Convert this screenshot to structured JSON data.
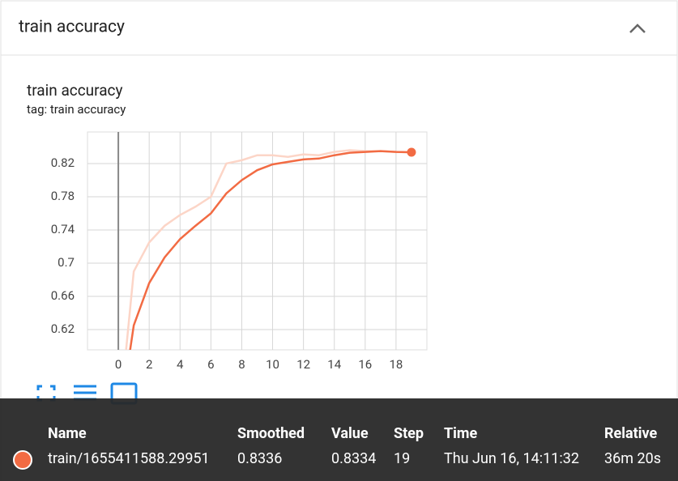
{
  "card": {
    "title": "train accuracy"
  },
  "chart_data": {
    "type": "line",
    "title": "train accuracy",
    "subtitle": "tag: train accuracy",
    "x": [
      0,
      1,
      2,
      3,
      4,
      5,
      6,
      7,
      8,
      9,
      10,
      11,
      12,
      13,
      14,
      15,
      16,
      17,
      18,
      19
    ],
    "series": [
      {
        "color": "#fcd5c7",
        "values": [
          0.5,
          0.69,
          0.725,
          0.745,
          0.758,
          0.768,
          0.78,
          0.82,
          0.824,
          0.83,
          0.83,
          0.828,
          0.831,
          0.83,
          0.834,
          0.836,
          0.835,
          0.835,
          0.834,
          0.8334
        ]
      },
      {
        "color": "#f26b43",
        "values": [
          0.5,
          0.625,
          0.676,
          0.707,
          0.729,
          0.745,
          0.76,
          0.784,
          0.8,
          0.812,
          0.819,
          0.822,
          0.825,
          0.826,
          0.83,
          0.833,
          0.834,
          0.835,
          0.834,
          0.8336
        ]
      }
    ],
    "xlim": [
      -2,
      20
    ],
    "ylim": [
      0.5956,
      0.858
    ],
    "xticks": [
      0,
      2,
      4,
      6,
      8,
      10,
      12,
      14,
      16,
      18
    ],
    "yticks": [
      0.62,
      0.66,
      0.7,
      0.74,
      0.78,
      0.82
    ],
    "grid": true
  },
  "tooltip": {
    "columns": [
      "Name",
      "Smoothed",
      "Value",
      "Step",
      "Time",
      "Relative"
    ],
    "row": [
      "train/1655411588.29951",
      "0.8336",
      "0.8334",
      "19",
      "Thu Jun 16, 14:11:32",
      "36m 20s"
    ]
  }
}
